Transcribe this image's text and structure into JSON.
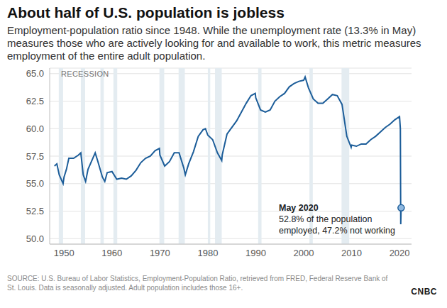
{
  "chart_data": {
    "type": "line",
    "title": "About half of U.S. population is jobless",
    "subtitle": "Employment-population ratio since 1948. While the unemployment rate (13.3% in May) measures those who are actively looking for and available to work, this metric measures employment of the entire adult population.",
    "recession_label": "RECESSION",
    "source": "SOURCE: U.S. Bureau of Labor Statistics, Employment-Population Ratio, retrieved from FRED, Federal Reserve Bank of St. Louis. Data is seasonally adjusted. Adult population includes those 16+.",
    "logo": "CNBC",
    "annotation": {
      "x": 2020.33,
      "y": 52.8,
      "title": "May 2020",
      "lines": [
        "52.8% of the population",
        "employed, 47.2% not working"
      ]
    },
    "recessions": [
      [
        1948.9,
        1949.8
      ],
      [
        1953.5,
        1954.4
      ],
      [
        1957.6,
        1958.3
      ],
      [
        1960.3,
        1961.1
      ],
      [
        1969.9,
        1970.9
      ],
      [
        1973.9,
        1975.2
      ],
      [
        1980.0,
        1980.5
      ],
      [
        1981.5,
        1982.9
      ],
      [
        1990.5,
        1991.2
      ],
      [
        2001.2,
        2001.9
      ],
      [
        2007.9,
        2009.5
      ]
    ],
    "x": [
      1948,
      1948.5,
      1949,
      1949.8,
      1950,
      1950.5,
      1951,
      1952,
      1953,
      1953.5,
      1954,
      1954.5,
      1955,
      1956,
      1956.5,
      1957,
      1958,
      1958.5,
      1959,
      1960,
      1961,
      1962,
      1963,
      1964,
      1965,
      1966,
      1967,
      1968,
      1969,
      1969.9,
      1970,
      1971,
      1972,
      1973,
      1974,
      1975,
      1975.3,
      1976,
      1977,
      1978,
      1979,
      1979.5,
      1980,
      1981,
      1982,
      1982.9,
      1983,
      1984,
      1985,
      1986,
      1987,
      1988,
      1989,
      1989.9,
      1990,
      1991,
      1992,
      1993,
      1994,
      1995,
      1996,
      1997,
      1998,
      1999,
      2000,
      2000.3,
      2001,
      2002,
      2003,
      2004,
      2005,
      2006,
      2007,
      2008,
      2009,
      2009.9,
      2010,
      2011,
      2012,
      2013,
      2014,
      2015,
      2016,
      2017,
      2018,
      2019,
      2020,
      2020.17,
      2020.25,
      2020.33
    ],
    "values": [
      56.6,
      56.8,
      55.8,
      55.0,
      55.6,
      56.3,
      57.3,
      57.3,
      57.6,
      57.8,
      55.8,
      55.2,
      56.3,
      57.3,
      57.8,
      57.1,
      55.6,
      55.2,
      56.0,
      56.1,
      55.4,
      55.5,
      55.4,
      55.7,
      56.2,
      56.9,
      57.3,
      57.5,
      58.0,
      58.2,
      57.6,
      56.6,
      57.0,
      57.8,
      57.8,
      56.4,
      55.8,
      56.8,
      57.9,
      59.3,
      59.9,
      60.0,
      59.4,
      59.0,
      57.8,
      57.1,
      57.6,
      59.5,
      60.1,
      60.7,
      61.5,
      62.3,
      63.0,
      63.2,
      62.8,
      61.7,
      61.5,
      61.7,
      62.5,
      62.9,
      63.2,
      63.8,
      64.1,
      64.3,
      64.4,
      64.7,
      63.7,
      62.7,
      62.3,
      62.3,
      62.7,
      63.1,
      63.0,
      62.2,
      59.3,
      58.3,
      58.5,
      58.4,
      58.6,
      58.6,
      59.0,
      59.3,
      59.7,
      60.1,
      60.4,
      60.8,
      61.1,
      60.0,
      51.3,
      52.8
    ],
    "color": "#1c5d99",
    "xlim": [
      1947,
      2022.5
    ],
    "xticks": [
      1950,
      1960,
      1970,
      1980,
      1990,
      2000,
      2010,
      2020
    ],
    "ylim": [
      49.5,
      65.5
    ],
    "yticks": [
      {
        "value": 50,
        "label": "50.0"
      },
      {
        "value": 52.5,
        "label": "52.5"
      },
      {
        "value": 55,
        "label": "55.0"
      },
      {
        "value": 57.5,
        "label": "57.5"
      },
      {
        "value": 60,
        "label": "60.0"
      },
      {
        "value": 62.5,
        "label": "62.5"
      },
      {
        "value": 65,
        "label": "65.0"
      }
    ],
    "grid": true
  }
}
